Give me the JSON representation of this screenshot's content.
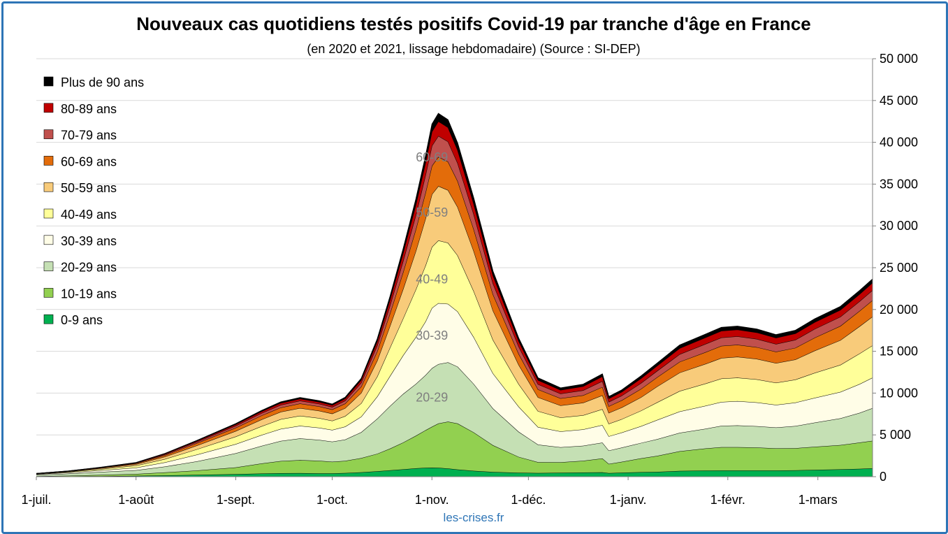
{
  "chart_data": {
    "type": "area",
    "stacked": true,
    "title": "Nouveaux cas quotidiens testés positifs Covid-19 par tranche d'âge en France",
    "subtitle": "(en 2020 et 2021, lissage hebdomadaire) (Source : SI-DEP)",
    "source_label": "les-crises.fr",
    "ylim": [
      0,
      50000
    ],
    "y_ticks": [
      0,
      5000,
      10000,
      15000,
      20000,
      25000,
      30000,
      35000,
      40000,
      45000,
      50000
    ],
    "y_tick_labels": [
      "0",
      "5 000",
      "10 000",
      "15 000",
      "20 000",
      "25 000",
      "30 000",
      "35 000",
      "40 000",
      "45 000",
      "50 000"
    ],
    "y_axis_position": "right",
    "grid": true,
    "legend_position": "top-left",
    "x_ticks": [
      {
        "label": "1-juil.",
        "day": 0
      },
      {
        "label": "1-août",
        "day": 31
      },
      {
        "label": "1-sept.",
        "day": 62
      },
      {
        "label": "1-oct.",
        "day": 92
      },
      {
        "label": "1-nov.",
        "day": 123
      },
      {
        "label": "1-déc.",
        "day": 153
      },
      {
        "label": "1-janv.",
        "day": 184
      },
      {
        "label": "1-févr.",
        "day": 215
      },
      {
        "label": "1-mars",
        "day": 243
      }
    ],
    "x_day_range": [
      0,
      260
    ],
    "x": [
      0,
      10,
      20,
      31,
      40,
      50,
      62,
      70,
      76,
      82,
      88,
      92,
      96,
      101,
      106,
      110,
      114,
      118,
      121,
      123,
      125,
      128,
      131,
      136,
      142,
      150,
      156,
      163,
      170,
      176,
      178,
      182,
      188,
      193,
      200,
      208,
      213,
      218,
      224,
      230,
      236,
      242,
      250,
      256,
      260
    ],
    "series": [
      {
        "name": "0-9 ans",
        "color": "#00b050",
        "values": [
          20,
          40,
          70,
          110,
          160,
          220,
          300,
          380,
          420,
          430,
          400,
          390,
          440,
          520,
          640,
          760,
          880,
          1000,
          1060,
          1080,
          1060,
          980,
          860,
          700,
          560,
          470,
          440,
          470,
          500,
          530,
          430,
          480,
          540,
          580,
          690,
          730,
          740,
          740,
          740,
          740,
          760,
          820,
          880,
          940,
          1000
        ]
      },
      {
        "name": "10-19 ans",
        "color": "#92d050",
        "values": [
          40,
          80,
          140,
          220,
          350,
          520,
          800,
          1200,
          1450,
          1550,
          1500,
          1400,
          1450,
          1700,
          2100,
          2600,
          3200,
          3900,
          4500,
          4900,
          5300,
          5600,
          5500,
          4600,
          3200,
          1900,
          1300,
          1250,
          1400,
          1650,
          1100,
          1300,
          1650,
          1900,
          2350,
          2650,
          2800,
          2800,
          2750,
          2650,
          2650,
          2750,
          2900,
          3150,
          3300
        ]
      },
      {
        "name": "20-29 ans",
        "color": "#c5e0b4",
        "values": [
          150,
          250,
          350,
          450,
          700,
          1100,
          1700,
          2100,
          2400,
          2600,
          2500,
          2400,
          2550,
          3100,
          4200,
          5100,
          5800,
          6200,
          6600,
          7000,
          7100,
          7100,
          6800,
          5800,
          4400,
          3000,
          2100,
          1800,
          1800,
          1900,
          1600,
          1700,
          1850,
          2000,
          2200,
          2350,
          2550,
          2600,
          2550,
          2500,
          2650,
          2900,
          3200,
          3550,
          3900
        ]
      },
      {
        "name": "30-39 ans",
        "color": "#fffde7",
        "values": [
          80,
          120,
          200,
          300,
          500,
          800,
          1100,
          1300,
          1450,
          1500,
          1450,
          1400,
          1550,
          1850,
          2650,
          3600,
          4600,
          5600,
          6400,
          7200,
          7300,
          7000,
          6600,
          5600,
          4200,
          3000,
          2100,
          1900,
          1950,
          2100,
          1700,
          1800,
          2000,
          2300,
          2550,
          2750,
          2850,
          2900,
          2850,
          2700,
          2800,
          2950,
          3150,
          3450,
          3650
        ]
      },
      {
        "name": "40-49 ans",
        "color": "#ffff99",
        "values": [
          40,
          80,
          150,
          250,
          400,
          650,
          900,
          1050,
          1150,
          1200,
          1150,
          1100,
          1250,
          1600,
          2400,
          3400,
          4400,
          5700,
          6700,
          7300,
          7500,
          7300,
          6700,
          5500,
          4000,
          2700,
          1900,
          1650,
          1700,
          1900,
          1500,
          1600,
          1850,
          2100,
          2450,
          2650,
          2800,
          2800,
          2750,
          2650,
          2750,
          3000,
          3250,
          3650,
          3850
        ]
      },
      {
        "name": "50-59 ans",
        "color": "#f8cb7a",
        "values": [
          25,
          50,
          90,
          150,
          280,
          450,
          650,
          800,
          880,
          920,
          880,
          850,
          950,
          1250,
          1900,
          2600,
          3500,
          4600,
          5600,
          6300,
          6500,
          6300,
          5800,
          4800,
          3500,
          2300,
          1650,
          1450,
          1500,
          1650,
          1300,
          1400,
          1600,
          1900,
          2200,
          2350,
          2450,
          2500,
          2450,
          2350,
          2400,
          2650,
          2950,
          3250,
          3450
        ]
      },
      {
        "name": "60-69 ans",
        "color": "#e36c0a",
        "values": [
          15,
          30,
          60,
          100,
          180,
          280,
          400,
          480,
          520,
          550,
          520,
          500,
          560,
          750,
          1100,
          1500,
          2000,
          2600,
          3100,
          3400,
          3500,
          3400,
          3100,
          2600,
          1950,
          1300,
          950,
          850,
          880,
          1000,
          800,
          850,
          1000,
          1100,
          1300,
          1400,
          1450,
          1450,
          1400,
          1350,
          1400,
          1550,
          1700,
          1850,
          1950
        ]
      },
      {
        "name": "70-79 ans",
        "color": "#c0504d",
        "values": [
          8,
          15,
          30,
          55,
          100,
          150,
          230,
          280,
          310,
          330,
          310,
          300,
          340,
          460,
          700,
          950,
          1350,
          1700,
          2100,
          2400,
          2500,
          2400,
          2150,
          1800,
          1300,
          870,
          620,
          560,
          600,
          700,
          520,
          560,
          700,
          760,
          900,
          980,
          1000,
          1000,
          980,
          930,
          950,
          1050,
          1100,
          1150,
          1200
        ]
      },
      {
        "name": "80-89 ans",
        "color": "#c00000",
        "values": [
          6,
          12,
          22,
          40,
          70,
          110,
          170,
          210,
          230,
          240,
          230,
          220,
          250,
          330,
          500,
          700,
          950,
          1250,
          1500,
          1700,
          1750,
          1700,
          1550,
          1250,
          950,
          660,
          490,
          440,
          470,
          560,
          410,
          440,
          560,
          610,
          720,
          780,
          800,
          800,
          780,
          740,
          760,
          800,
          820,
          860,
          900
        ]
      },
      {
        "name": "Plus de 90 ans",
        "color": "#000000",
        "values": [
          4,
          8,
          15,
          25,
          45,
          70,
          100,
          120,
          140,
          150,
          140,
          130,
          150,
          200,
          300,
          400,
          520,
          680,
          820,
          900,
          950,
          920,
          850,
          700,
          520,
          360,
          270,
          250,
          260,
          300,
          230,
          250,
          300,
          330,
          380,
          400,
          420,
          420,
          410,
          380,
          390,
          410,
          420,
          430,
          450
        ]
      }
    ],
    "area_labels": [
      {
        "text": "60-69",
        "day": 123,
        "value": 38200
      },
      {
        "text": "50-59",
        "day": 123,
        "value": 31600
      },
      {
        "text": "40-49",
        "day": 123,
        "value": 23600
      },
      {
        "text": "30-39",
        "day": 123,
        "value": 16900
      },
      {
        "text": "20-29",
        "day": 123,
        "value": 9500
      }
    ]
  }
}
